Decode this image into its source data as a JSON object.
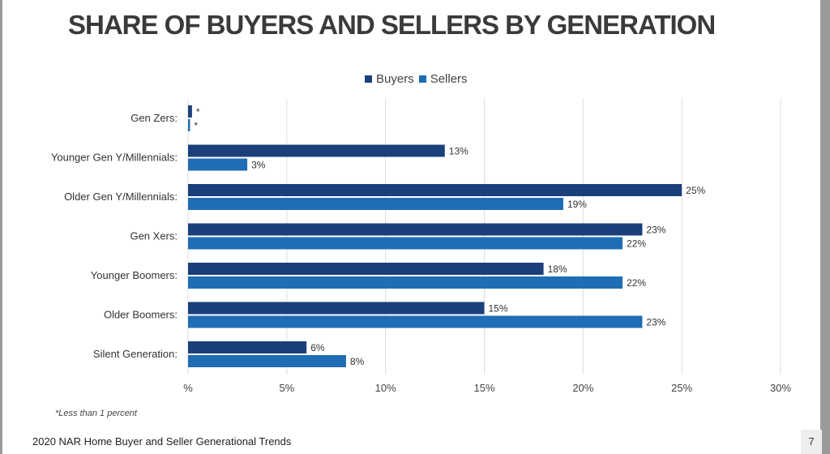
{
  "colors": {
    "buyers": "#1b3f7a",
    "sellers": "#1f6db4",
    "grid": "#dcdcdc",
    "text": "#3a3a3a"
  },
  "chart_data": {
    "type": "bar",
    "orientation": "horizontal",
    "title": "SHARE OF BUYERS AND SELLERS BY GENERATION",
    "categories": [
      "Gen Zers:",
      "Younger Gen Y/Millennials:",
      "Older Gen Y/Millennials:",
      "Gen Xers:",
      "Younger Boomers:",
      "Older Boomers:",
      "Silent Generation:"
    ],
    "series": [
      {
        "name": "Buyers",
        "values": [
          0.2,
          13,
          25,
          23,
          18,
          15,
          6
        ],
        "labels": [
          "*",
          "13%",
          "25%",
          "23%",
          "18%",
          "15%",
          "6%"
        ]
      },
      {
        "name": "Sellers",
        "values": [
          0.1,
          3,
          19,
          22,
          22,
          23,
          8
        ],
        "labels": [
          "*",
          "3%",
          "19%",
          "22%",
          "22%",
          "23%",
          "8%"
        ]
      }
    ],
    "xlim": [
      0,
      30
    ],
    "xticks": [
      0,
      5,
      10,
      15,
      20,
      25,
      30
    ],
    "xtick_labels": [
      "%",
      "5%",
      "10%",
      "15%",
      "20%",
      "25%",
      "30%"
    ],
    "legend_position": "top-center",
    "grid": true
  },
  "footnote": "*Less than 1 percent",
  "footer": "2020 NAR Home Buyer and Seller Generational Trends",
  "page_number": "7"
}
